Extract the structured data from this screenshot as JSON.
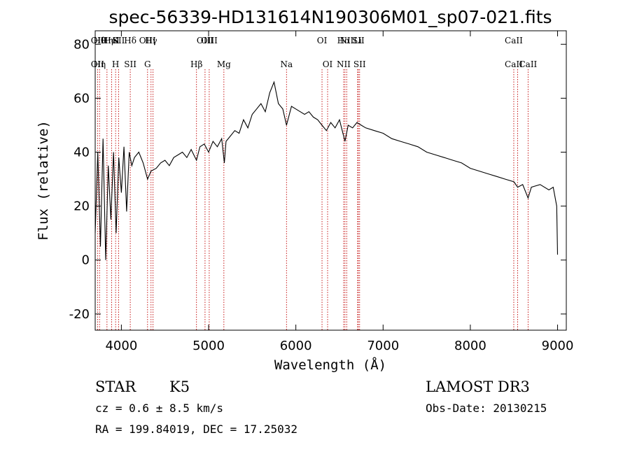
{
  "chart_data": {
    "type": "line",
    "title": "spec-56339-HD131614N190306M01_sp07-021.fits",
    "xlabel": "Wavelength (Å)",
    "ylabel": "Flux (relative)",
    "xlim": [
      3700,
      9100
    ],
    "ylim": [
      -26,
      85
    ],
    "xticks": [
      4000,
      5000,
      6000,
      7000,
      8000,
      9000
    ],
    "yticks": [
      -20,
      0,
      20,
      40,
      60,
      80
    ],
    "grid": false,
    "series": [
      {
        "name": "flux",
        "x": [
          3700,
          3730,
          3760,
          3790,
          3820,
          3850,
          3880,
          3910,
          3940,
          3970,
          4000,
          4030,
          4060,
          4090,
          4120,
          4150,
          4200,
          4250,
          4300,
          4340,
          4400,
          4450,
          4500,
          4550,
          4600,
          4650,
          4700,
          4750,
          4800,
          4861,
          4900,
          4950,
          5000,
          5050,
          5100,
          5150,
          5180,
          5200,
          5250,
          5300,
          5350,
          5400,
          5450,
          5500,
          5550,
          5600,
          5650,
          5700,
          5750,
          5800,
          5850,
          5893,
          5950,
          6000,
          6050,
          6100,
          6150,
          6200,
          6250,
          6300,
          6350,
          6400,
          6450,
          6500,
          6563,
          6600,
          6650,
          6700,
          6750,
          6800,
          6900,
          7000,
          7100,
          7200,
          7300,
          7400,
          7500,
          7600,
          7700,
          7800,
          7900,
          8000,
          8100,
          8200,
          8300,
          8400,
          8500,
          8542,
          8600,
          8662,
          8700,
          8800,
          8900,
          8950,
          8990,
          9000
        ],
        "values": [
          10,
          40,
          5,
          45,
          0,
          35,
          15,
          40,
          10,
          38,
          25,
          42,
          18,
          40,
          35,
          38,
          40,
          36,
          30,
          33,
          34,
          36,
          37,
          35,
          38,
          39,
          40,
          38,
          41,
          37,
          42,
          43,
          40,
          44,
          42,
          45,
          36,
          44,
          46,
          48,
          47,
          52,
          49,
          54,
          56,
          58,
          55,
          62,
          66,
          58,
          56,
          50,
          57,
          56,
          55,
          54,
          55,
          53,
          52,
          50,
          48,
          51,
          49,
          52,
          44,
          50,
          49,
          51,
          50,
          49,
          48,
          47,
          45,
          44,
          43,
          42,
          40,
          39,
          38,
          37,
          36,
          34,
          33,
          32,
          31,
          30,
          29,
          27,
          28,
          23,
          27,
          28,
          26,
          27,
          20,
          2
        ]
      }
    ],
    "line_markers": [
      {
        "wave": 3727,
        "top": "OII",
        "bottom": "OII"
      },
      {
        "wave": 3750,
        "top": "Hθ",
        "bottom": "Hη"
      },
      {
        "wave": 3835,
        "top": "Hη",
        "bottom": ""
      },
      {
        "wave": 3889,
        "top": "HeI",
        "bottom": ""
      },
      {
        "wave": 3934,
        "top": "K",
        "bottom": "H"
      },
      {
        "wave": 3969,
        "top": "SII",
        "bottom": ""
      },
      {
        "wave": 4102,
        "top": "Hδ",
        "bottom": "SII"
      },
      {
        "wave": 4300,
        "top": "OIII",
        "bottom": "G"
      },
      {
        "wave": 4340,
        "top": "Hγ",
        "bottom": ""
      },
      {
        "wave": 4363,
        "top": "",
        "bottom": ""
      },
      {
        "wave": 4861,
        "top": "",
        "bottom": "Hβ"
      },
      {
        "wave": 4959,
        "top": "OIII",
        "bottom": ""
      },
      {
        "wave": 5007,
        "top": "OIII",
        "bottom": ""
      },
      {
        "wave": 5175,
        "top": "",
        "bottom": "Mg"
      },
      {
        "wave": 5893,
        "top": "",
        "bottom": "Na"
      },
      {
        "wave": 6300,
        "top": "OI",
        "bottom": ""
      },
      {
        "wave": 6364,
        "top": "",
        "bottom": "OI"
      },
      {
        "wave": 6548,
        "top": "Hα",
        "bottom": "NII"
      },
      {
        "wave": 6563,
        "top": "",
        "bottom": ""
      },
      {
        "wave": 6583,
        "top": "NII",
        "bottom": ""
      },
      {
        "wave": 6708,
        "top": "Li",
        "bottom": ""
      },
      {
        "wave": 6716,
        "top": "SII",
        "bottom": ""
      },
      {
        "wave": 6731,
        "top": "",
        "bottom": "SII"
      },
      {
        "wave": 8498,
        "top": "CaII",
        "bottom": "CaII"
      },
      {
        "wave": 8542,
        "top": "",
        "bottom": ""
      },
      {
        "wave": 8662,
        "top": "",
        "bottom": "CaII"
      }
    ]
  },
  "info": {
    "class_label": "STAR",
    "subclass": "K5",
    "survey": "LAMOST DR3",
    "redshift_line": "cz = 0.6 ± 8.5 km/s",
    "obs_date_line": "Obs-Date: 20130215",
    "coords_line": "RA = 199.84019, DEC =  17.25032"
  }
}
